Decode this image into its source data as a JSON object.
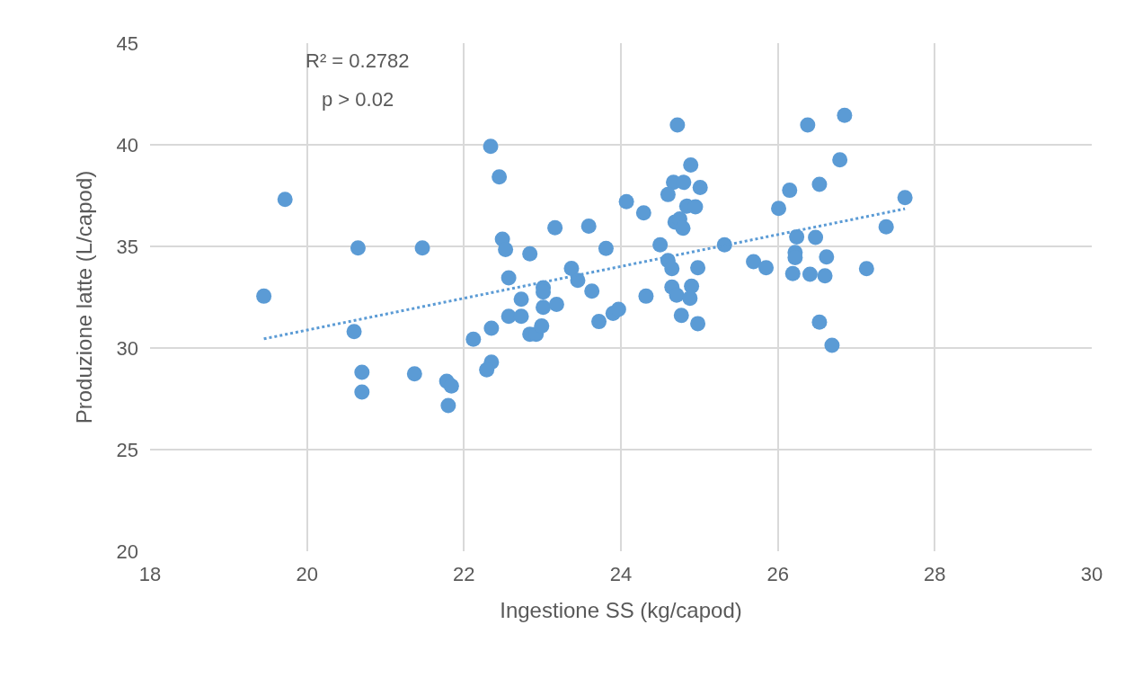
{
  "chart_data": {
    "type": "scatter",
    "xlabel": "Ingestione SS (kg/capod)",
    "ylabel": "Produzione latte (L/capod)",
    "annotations": [
      "R² = 0.2782",
      "p > 0.02"
    ],
    "xlim": [
      18,
      30
    ],
    "xticks": [
      18,
      20,
      22,
      24,
      26,
      28,
      30
    ],
    "ylim": [
      20,
      45
    ],
    "yticks": [
      20,
      25,
      30,
      35,
      40,
      45
    ],
    "grid": true,
    "series": [
      {
        "marker": "circle",
        "color": "#5b9bd5",
        "x": [
          19.45,
          19.72,
          20.65,
          20.6,
          20.7,
          20.7,
          21.47,
          21.37,
          21.78,
          21.84,
          21.8,
          22.12,
          22.35,
          22.35,
          22.29,
          22.34,
          22.45,
          22.49,
          22.53,
          22.84,
          22.57,
          22.73,
          22.57,
          22.73,
          22.84,
          22.92,
          22.99,
          23.01,
          23.01,
          23.01,
          23.18,
          23.16,
          23.37,
          23.45,
          23.59,
          23.81,
          23.63,
          23.72,
          23.9,
          23.97,
          24.07,
          24.29,
          24.32,
          24.5,
          24.6,
          24.65,
          24.72,
          24.89,
          24.67,
          24.8,
          25.01,
          24.6,
          24.84,
          24.95,
          24.69,
          24.75,
          24.79,
          24.98,
          24.65,
          24.71,
          24.9,
          24.88,
          24.77,
          24.98,
          25.32,
          25.69,
          25.85,
          26.01,
          26.15,
          26.38,
          26.85,
          26.79,
          26.53,
          26.24,
          26.48,
          26.22,
          26.22,
          26.62,
          26.19,
          26.41,
          26.6,
          27.13,
          27.38,
          27.62,
          26.53,
          26.69
        ],
        "values": [
          32.55,
          37.31,
          34.92,
          30.81,
          28.81,
          27.83,
          34.92,
          28.73,
          28.36,
          28.13,
          27.17,
          30.43,
          30.97,
          29.3,
          28.93,
          39.92,
          38.42,
          35.35,
          34.85,
          34.63,
          33.45,
          32.4,
          31.56,
          31.56,
          30.68,
          30.68,
          31.08,
          32.96,
          32.75,
          32.0,
          32.15,
          35.92,
          33.92,
          33.33,
          36.0,
          34.9,
          32.8,
          31.3,
          31.7,
          31.9,
          37.2,
          36.65,
          32.55,
          35.08,
          34.3,
          33.9,
          40.97,
          39.0,
          38.15,
          38.15,
          37.9,
          37.55,
          36.98,
          36.95,
          36.2,
          36.35,
          35.9,
          33.95,
          33.0,
          32.6,
          33.04,
          32.45,
          31.6,
          31.2,
          35.08,
          34.25,
          33.95,
          36.87,
          37.76,
          40.97,
          41.45,
          39.26,
          38.05,
          35.47,
          35.44,
          34.7,
          34.45,
          34.48,
          33.66,
          33.63,
          33.55,
          33.9,
          35.96,
          37.4,
          31.27,
          30.13
        ]
      },
      {
        "type": "line",
        "marker": "none",
        "color": "#5b9bd5",
        "line_style": "dotted",
        "x": [
          19.45,
          27.62
        ],
        "values": [
          30.45,
          36.85
        ]
      }
    ]
  }
}
